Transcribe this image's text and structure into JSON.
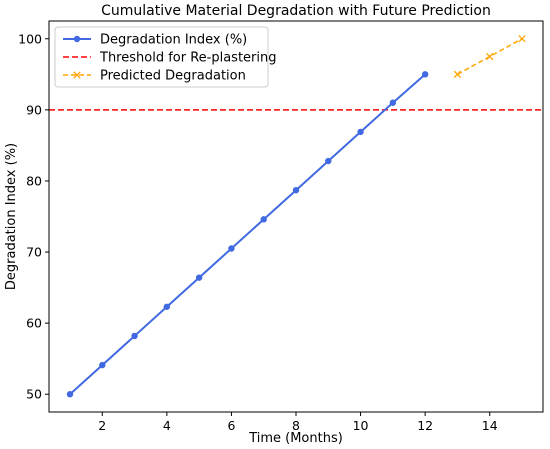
{
  "chart_data": {
    "type": "line",
    "title": "Cumulative Material Degradation with Future Prediction",
    "xlabel": "Time (Months)",
    "ylabel": "Degradation Index (%)",
    "xlim": [
      0.35,
      15.65
    ],
    "ylim": [
      47.5,
      102.5
    ],
    "xticks": [
      2,
      4,
      6,
      8,
      10,
      12,
      14
    ],
    "yticks": [
      50,
      60,
      70,
      80,
      90,
      100
    ],
    "grid": false,
    "legend_position": "top-left",
    "series": [
      {
        "name": "Degradation Index (%)",
        "color": "#4169e1",
        "style": "solid",
        "marker": "circle",
        "x": [
          1,
          2,
          3,
          4,
          5,
          6,
          7,
          8,
          9,
          10,
          11,
          12
        ],
        "y": [
          50.0,
          54.1,
          58.2,
          62.3,
          66.4,
          70.5,
          74.6,
          78.7,
          82.8,
          86.9,
          91.0,
          95.0
        ]
      },
      {
        "name": "Predicted Degradation",
        "color": "#ffa500",
        "style": "dashed",
        "marker": "x",
        "x": [
          13,
          14,
          15
        ],
        "y": [
          95.0,
          97.5,
          100.0
        ]
      }
    ],
    "reference_lines": [
      {
        "name": "Threshold for Re-plastering",
        "orientation": "horizontal",
        "y": 90,
        "color": "#ff0000",
        "style": "dashed"
      }
    ]
  }
}
